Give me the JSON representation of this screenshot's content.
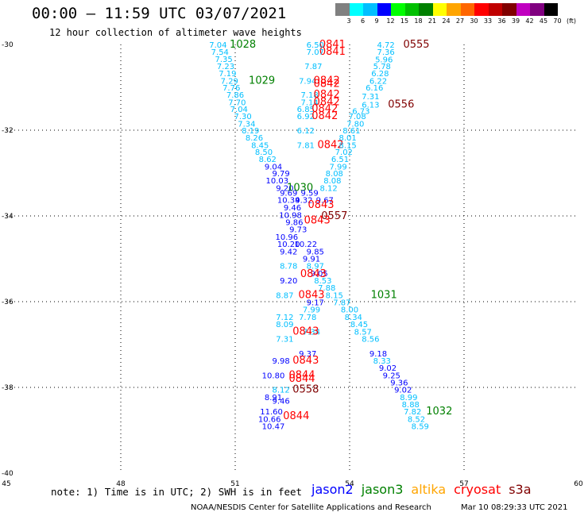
{
  "header": {
    "title": "00:00 – 11:59 UTC 03/07/2021",
    "subtitle": "12 hour collection of altimeter wave heights"
  },
  "colorbar": {
    "colors": [
      "#808080",
      "#00ffff",
      "#00bfff",
      "#0000ff",
      "#00ff00",
      "#00c000",
      "#008000",
      "#ffff00",
      "#ffa500",
      "#ff6600",
      "#ff0000",
      "#c00000",
      "#800000",
      "#c000c0",
      "#800080",
      "#000000"
    ],
    "labels": [
      "3",
      "6",
      "9",
      "12",
      "15",
      "18",
      "21",
      "24",
      "27",
      "30",
      "33",
      "36",
      "39",
      "42",
      "45",
      "70",
      "(ft)"
    ]
  },
  "chart_data": {
    "type": "scatter",
    "xlim": [
      45,
      60
    ],
    "ylim": [
      -40,
      -30
    ],
    "x_ticks": [
      "45",
      "48",
      "51",
      "54",
      "57",
      "60"
    ],
    "y_ticks": [
      "-30",
      "-32",
      "-34",
      "-36",
      "-38",
      "-40"
    ],
    "grid": true,
    "value_labels": [
      {
        "x": 50.55,
        "y": -30.0,
        "t": "7.04",
        "c": "#00bfff"
      },
      {
        "x": 51.2,
        "y": -30.0,
        "t": "1028",
        "c": "#008000"
      },
      {
        "x": 50.6,
        "y": -30.17,
        "t": "7.54",
        "c": "#00bfff"
      },
      {
        "x": 50.7,
        "y": -30.33,
        "t": "7.35",
        "c": "#00bfff"
      },
      {
        "x": 50.75,
        "y": -30.5,
        "t": "7.23",
        "c": "#00bfff"
      },
      {
        "x": 50.8,
        "y": -30.67,
        "t": "7.19",
        "c": "#00bfff"
      },
      {
        "x": 50.85,
        "y": -30.84,
        "t": "7.29",
        "c": "#00bfff"
      },
      {
        "x": 51.7,
        "y": -30.84,
        "t": "1029",
        "c": "#008000"
      },
      {
        "x": 50.9,
        "y": -31.0,
        "t": "7.76",
        "c": "#00bfff"
      },
      {
        "x": 51.0,
        "y": -31.17,
        "t": "7.86",
        "c": "#00bfff"
      },
      {
        "x": 51.05,
        "y": -31.34,
        "t": "7.70",
        "c": "#00bfff"
      },
      {
        "x": 51.1,
        "y": -31.5,
        "t": "7.04",
        "c": "#00bfff"
      },
      {
        "x": 51.2,
        "y": -31.67,
        "t": "7.30",
        "c": "#00bfff"
      },
      {
        "x": 51.3,
        "y": -31.84,
        "t": "7.34",
        "c": "#00bfff"
      },
      {
        "x": 51.4,
        "y": -32.0,
        "t": "8.19",
        "c": "#00bfff"
      },
      {
        "x": 51.5,
        "y": -32.17,
        "t": "8.26",
        "c": "#00bfff"
      },
      {
        "x": 51.65,
        "y": -32.34,
        "t": "8.45",
        "c": "#00bfff"
      },
      {
        "x": 51.75,
        "y": -32.5,
        "t": "8.50",
        "c": "#00bfff"
      },
      {
        "x": 51.85,
        "y": -32.67,
        "t": "8.62",
        "c": "#00bfff"
      },
      {
        "x": 52.0,
        "y": -32.84,
        "t": "9.04",
        "c": "#0000ff"
      },
      {
        "x": 52.2,
        "y": -33.0,
        "t": "9.79",
        "c": "#0000ff"
      },
      {
        "x": 52.1,
        "y": -33.17,
        "t": "10.03",
        "c": "#0000ff"
      },
      {
        "x": 52.3,
        "y": -33.34,
        "t": "9.20",
        "c": "#0000ff"
      },
      {
        "x": 52.7,
        "y": -33.34,
        "t": "1030",
        "c": "#008000"
      },
      {
        "x": 52.4,
        "y": -33.45,
        "t": "9.69",
        "c": "#0000ff"
      },
      {
        "x": 52.95,
        "y": -33.45,
        "t": "9.59",
        "c": "#0000ff"
      },
      {
        "x": 52.4,
        "y": -33.62,
        "t": "10.34",
        "c": "#0000ff"
      },
      {
        "x": 52.8,
        "y": -33.62,
        "t": "9.32",
        "c": "#0000ff"
      },
      {
        "x": 52.5,
        "y": -33.8,
        "t": "9.46",
        "c": "#0000ff"
      },
      {
        "x": 52.45,
        "y": -33.97,
        "t": "10.98",
        "c": "#0000ff"
      },
      {
        "x": 52.55,
        "y": -34.14,
        "t": "9.86",
        "c": "#0000ff"
      },
      {
        "x": 52.65,
        "y": -34.31,
        "t": "9.73",
        "c": "#0000ff"
      },
      {
        "x": 52.35,
        "y": -34.48,
        "t": "10.96",
        "c": "#0000ff"
      },
      {
        "x": 52.4,
        "y": -34.65,
        "t": "10.20",
        "c": "#0000ff"
      },
      {
        "x": 52.85,
        "y": -34.65,
        "t": "10.22",
        "c": "#0000ff"
      },
      {
        "x": 52.4,
        "y": -34.82,
        "t": "9.42",
        "c": "#0000ff"
      },
      {
        "x": 53.1,
        "y": -34.82,
        "t": "9.85",
        "c": "#0000ff"
      },
      {
        "x": 53.0,
        "y": -34.99,
        "t": "9.91",
        "c": "#0000ff"
      },
      {
        "x": 53.1,
        "y": -35.16,
        "t": "8.97",
        "c": "#00bfff"
      },
      {
        "x": 52.4,
        "y": -35.16,
        "t": "8.78",
        "c": "#00bfff"
      },
      {
        "x": 53.2,
        "y": -35.33,
        "t": "9.05",
        "c": "#0000ff"
      },
      {
        "x": 52.4,
        "y": -35.5,
        "t": "9.20",
        "c": "#0000ff"
      },
      {
        "x": 53.3,
        "y": -35.5,
        "t": "8.53",
        "c": "#00bfff"
      },
      {
        "x": 53.4,
        "y": -35.67,
        "t": "7.88",
        "c": "#00bfff"
      },
      {
        "x": 52.3,
        "y": -35.84,
        "t": "8.87",
        "c": "#00bfff"
      },
      {
        "x": 53.6,
        "y": -35.84,
        "t": "8.15",
        "c": "#00bfff"
      },
      {
        "x": 54.9,
        "y": -35.84,
        "t": "1031",
        "c": "#008000"
      },
      {
        "x": 53.1,
        "y": -36.01,
        "t": "9.17",
        "c": "#0000ff"
      },
      {
        "x": 53.8,
        "y": -36.01,
        "t": "7.87",
        "c": "#00bfff"
      },
      {
        "x": 53.0,
        "y": -36.18,
        "t": "7.99",
        "c": "#00bfff"
      },
      {
        "x": 54.0,
        "y": -36.18,
        "t": "8.00",
        "c": "#00bfff"
      },
      {
        "x": 52.3,
        "y": -36.35,
        "t": "7.12",
        "c": "#00bfff"
      },
      {
        "x": 52.9,
        "y": -36.35,
        "t": "7.78",
        "c": "#00bfff"
      },
      {
        "x": 54.1,
        "y": -36.35,
        "t": "8.34",
        "c": "#00bfff"
      },
      {
        "x": 52.3,
        "y": -36.52,
        "t": "8.09",
        "c": "#00bfff"
      },
      {
        "x": 53.0,
        "y": -36.69,
        "t": "7.34",
        "c": "#00bfff"
      },
      {
        "x": 54.25,
        "y": -36.52,
        "t": "8.45",
        "c": "#00bfff"
      },
      {
        "x": 52.3,
        "y": -36.86,
        "t": "7.31",
        "c": "#00bfff"
      },
      {
        "x": 54.35,
        "y": -36.69,
        "t": "8.57",
        "c": "#00bfff"
      },
      {
        "x": 54.55,
        "y": -36.86,
        "t": "8.56",
        "c": "#00bfff"
      },
      {
        "x": 52.9,
        "y": -37.2,
        "t": "9.37",
        "c": "#0000ff"
      },
      {
        "x": 54.75,
        "y": -37.2,
        "t": "9.18",
        "c": "#0000ff"
      },
      {
        "x": 52.2,
        "y": -37.37,
        "t": "9.98",
        "c": "#0000ff"
      },
      {
        "x": 54.85,
        "y": -37.37,
        "t": "8.33",
        "c": "#00bfff"
      },
      {
        "x": 55.0,
        "y": -37.54,
        "t": "9.02",
        "c": "#0000ff"
      },
      {
        "x": 52.0,
        "y": -37.71,
        "t": "10.80",
        "c": "#0000ff"
      },
      {
        "x": 55.1,
        "y": -37.71,
        "t": "9.25",
        "c": "#0000ff"
      },
      {
        "x": 55.3,
        "y": -37.88,
        "t": "9.36",
        "c": "#0000ff"
      },
      {
        "x": 52.2,
        "y": -38.05,
        "t": "8.12",
        "c": "#00bfff"
      },
      {
        "x": 55.4,
        "y": -38.05,
        "t": "9.02",
        "c": "#0000ff"
      },
      {
        "x": 52.0,
        "y": -38.22,
        "t": "8.91",
        "c": "#0000ff"
      },
      {
        "x": 55.55,
        "y": -38.22,
        "t": "8.99",
        "c": "#00bfff"
      },
      {
        "x": 52.2,
        "y": -38.31,
        "t": "9.46",
        "c": "#0000ff"
      },
      {
        "x": 55.6,
        "y": -38.39,
        "t": "8.88",
        "c": "#00bfff"
      },
      {
        "x": 55.65,
        "y": -38.56,
        "t": "7.82",
        "c": "#00bfff"
      },
      {
        "x": 56.35,
        "y": -38.56,
        "t": "1032",
        "c": "#008000"
      },
      {
        "x": 51.95,
        "y": -38.56,
        "t": "11.60",
        "c": "#0000ff"
      },
      {
        "x": 55.75,
        "y": -38.73,
        "t": "8.52",
        "c": "#00bfff"
      },
      {
        "x": 51.9,
        "y": -38.73,
        "t": "10.66",
        "c": "#0000ff"
      },
      {
        "x": 55.85,
        "y": -38.9,
        "t": "8.59",
        "c": "#00bfff"
      },
      {
        "x": 52.0,
        "y": -38.9,
        "t": "10.47",
        "c": "#0000ff"
      },
      {
        "x": 53.55,
        "y": -30.0,
        "t": "0841",
        "c": "#ff0000"
      },
      {
        "x": 53.55,
        "y": -30.17,
        "t": "0841",
        "c": "#ff0000"
      },
      {
        "x": 53.1,
        "y": -30.0,
        "t": "6.50",
        "c": "#00bfff"
      },
      {
        "x": 53.1,
        "y": -30.17,
        "t": "7.07",
        "c": "#00bfff"
      },
      {
        "x": 54.95,
        "y": -30.0,
        "t": "4.72",
        "c": "#00bfff"
      },
      {
        "x": 55.75,
        "y": -30.0,
        "t": "0555",
        "c": "#800000"
      },
      {
        "x": 54.95,
        "y": -30.17,
        "t": "7.36",
        "c": "#00bfff"
      },
      {
        "x": 54.9,
        "y": -30.34,
        "t": "5.96",
        "c": "#00bfff"
      },
      {
        "x": 54.85,
        "y": -30.5,
        "t": "5.78",
        "c": "#00bfff"
      },
      {
        "x": 54.8,
        "y": -30.67,
        "t": "6.28",
        "c": "#00bfff"
      },
      {
        "x": 53.05,
        "y": -30.5,
        "t": "7.87",
        "c": "#00bfff"
      },
      {
        "x": 52.9,
        "y": -30.84,
        "t": "7.94",
        "c": "#00bfff"
      },
      {
        "x": 53.4,
        "y": -30.84,
        "t": "0842",
        "c": "#ff0000"
      },
      {
        "x": 53.4,
        "y": -30.92,
        "t": "0842",
        "c": "#ff0000"
      },
      {
        "x": 54.75,
        "y": -30.84,
        "t": "6.22",
        "c": "#00bfff"
      },
      {
        "x": 54.65,
        "y": -31.0,
        "t": "6.16",
        "c": "#00bfff"
      },
      {
        "x": 52.95,
        "y": -31.17,
        "t": "7.18",
        "c": "#00bfff"
      },
      {
        "x": 53.4,
        "y": -31.17,
        "t": "0842",
        "c": "#ff0000"
      },
      {
        "x": 54.55,
        "y": -31.2,
        "t": "7.31",
        "c": "#00bfff"
      },
      {
        "x": 52.95,
        "y": -31.34,
        "t": "7.14",
        "c": "#00bfff"
      },
      {
        "x": 53.4,
        "y": -31.34,
        "t": "0842",
        "c": "#ff0000"
      },
      {
        "x": 54.55,
        "y": -31.4,
        "t": "6.13",
        "c": "#00bfff"
      },
      {
        "x": 55.35,
        "y": -31.4,
        "t": "0556",
        "c": "#800000"
      },
      {
        "x": 52.85,
        "y": -31.5,
        "t": "6.85",
        "c": "#00bfff"
      },
      {
        "x": 53.35,
        "y": -31.5,
        "t": "0842",
        "c": "#ff0000"
      },
      {
        "x": 54.3,
        "y": -31.55,
        "t": "6.73",
        "c": "#00bfff"
      },
      {
        "x": 52.85,
        "y": -31.67,
        "t": "6.92",
        "c": "#00bfff"
      },
      {
        "x": 53.35,
        "y": -31.67,
        "t": "0842",
        "c": "#ff0000"
      },
      {
        "x": 54.2,
        "y": -31.67,
        "t": "7.08",
        "c": "#00bfff"
      },
      {
        "x": 54.15,
        "y": -31.84,
        "t": "7.80",
        "c": "#00bfff"
      },
      {
        "x": 52.85,
        "y": -32.0,
        "t": "6.12",
        "c": "#00bfff"
      },
      {
        "x": 54.05,
        "y": -32.0,
        "t": "8.61",
        "c": "#00bfff"
      },
      {
        "x": 53.95,
        "y": -32.17,
        "t": "8.01",
        "c": "#00bfff"
      },
      {
        "x": 52.85,
        "y": -32.34,
        "t": "7.81",
        "c": "#00bfff"
      },
      {
        "x": 53.5,
        "y": -32.34,
        "t": "0842",
        "c": "#ff0000"
      },
      {
        "x": 53.95,
        "y": -32.34,
        "t": "8.15",
        "c": "#00bfff"
      },
      {
        "x": 53.85,
        "y": -32.5,
        "t": "7.02",
        "c": "#00bfff"
      },
      {
        "x": 53.75,
        "y": -32.67,
        "t": "6.51",
        "c": "#00bfff"
      },
      {
        "x": 53.7,
        "y": -32.84,
        "t": "7.99",
        "c": "#00bfff"
      },
      {
        "x": 53.6,
        "y": -33.0,
        "t": "8.08",
        "c": "#00bfff"
      },
      {
        "x": 53.55,
        "y": -33.17,
        "t": "8.08",
        "c": "#00bfff"
      },
      {
        "x": 53.45,
        "y": -33.34,
        "t": "8.12",
        "c": "#00bfff"
      },
      {
        "x": 53.35,
        "y": -33.62,
        "t": "9.67",
        "c": "#0000ff"
      },
      {
        "x": 53.25,
        "y": -33.74,
        "t": "0843",
        "c": "#ff0000"
      },
      {
        "x": 53.6,
        "y": -34.0,
        "t": "0557",
        "c": "#800000"
      },
      {
        "x": 53.15,
        "y": -34.1,
        "t": "0843",
        "c": "#ff0000"
      },
      {
        "x": 53.05,
        "y": -35.35,
        "t": "0843",
        "c": "#ff0000"
      },
      {
        "x": 53.0,
        "y": -35.84,
        "t": "0843",
        "c": "#ff0000"
      },
      {
        "x": 52.85,
        "y": -36.69,
        "t": "0843",
        "c": "#ff0000"
      },
      {
        "x": 52.85,
        "y": -37.37,
        "t": "0843",
        "c": "#ff0000"
      },
      {
        "x": 52.75,
        "y": -37.71,
        "t": "0844",
        "c": "#ff0000"
      },
      {
        "x": 52.75,
        "y": -37.8,
        "t": "0844",
        "c": "#ff0000"
      },
      {
        "x": 52.85,
        "y": -38.05,
        "t": "0558",
        "c": "#800000"
      },
      {
        "x": 52.6,
        "y": -38.67,
        "t": "0844",
        "c": "#ff0000"
      }
    ]
  },
  "note": "note: 1) Time is in UTC; 2) SWH is in feet",
  "legend": [
    {
      "label": "jason2",
      "color": "#0000ff"
    },
    {
      "label": "jason3",
      "color": "#008000"
    },
    {
      "label": "altika",
      "color": "#ffa500"
    },
    {
      "label": "cryosat",
      "color": "#ff0000"
    },
    {
      "label": "s3a",
      "color": "#800000"
    }
  ],
  "footer": {
    "source": "NOAA/NESDIS Center for Satellite Applications and Research",
    "timestamp": "Mar 10 08:29:33 UTC 2021"
  }
}
